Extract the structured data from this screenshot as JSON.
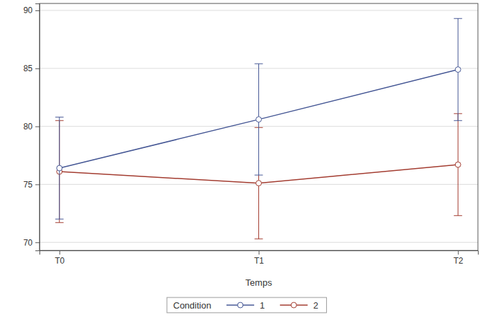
{
  "chart_data": {
    "type": "line",
    "x_label": "Temps",
    "legend_title": "Condition",
    "categories": [
      "T0",
      "T1",
      "T2"
    ],
    "series": [
      {
        "name": "1",
        "color": "#445694",
        "marker": "circle",
        "values": [
          76.4,
          80.6,
          84.9
        ],
        "errors": [
          4.4,
          4.8,
          4.4
        ]
      },
      {
        "name": "2",
        "color": "#a23a2e",
        "marker": "circle",
        "values": [
          76.1,
          75.1,
          76.7
        ],
        "errors": [
          4.4,
          4.8,
          4.4
        ]
      }
    ],
    "ylim": [
      69.3,
      90.6
    ],
    "yticks": [
      70,
      75,
      80,
      85,
      90
    ],
    "grid": true,
    "legend": "bottom"
  }
}
